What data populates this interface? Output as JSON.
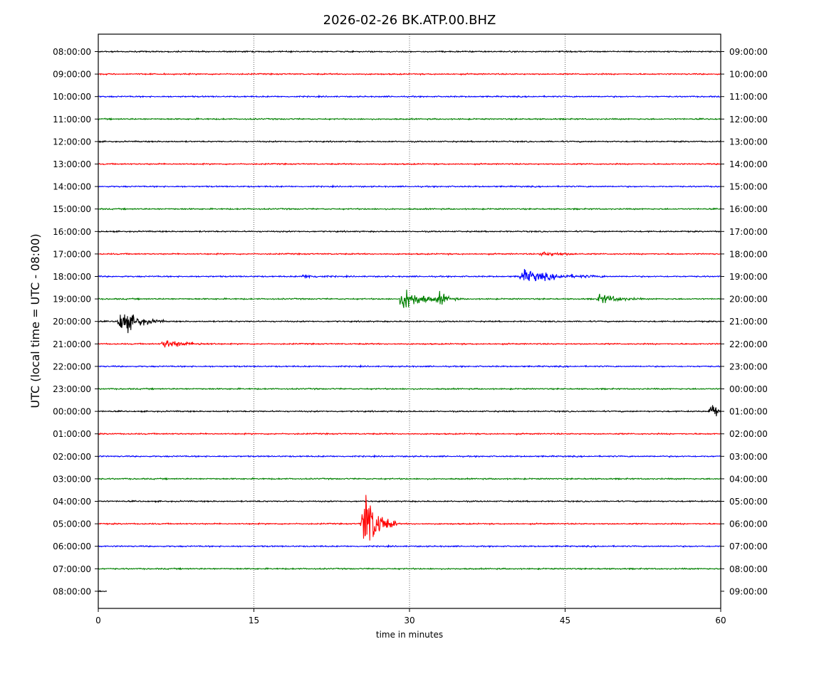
{
  "chart_data": {
    "type": "line",
    "title": "2026-02-26 BK.ATP.00.BHZ",
    "xlabel": "time in minutes",
    "ylabel": "UTC (local time = UTC - 08:00)",
    "xlim": [
      0,
      60
    ],
    "x_ticks": [
      0,
      15,
      30,
      45,
      60
    ],
    "grid": "vertical dotted lines at 15, 30, 45",
    "colors": [
      "#000000",
      "#ff0000",
      "#0000ff",
      "#008000"
    ],
    "left_labels": [
      "08:00:00",
      "09:00:00",
      "10:00:00",
      "11:00:00",
      "12:00:00",
      "13:00:00",
      "14:00:00",
      "15:00:00",
      "16:00:00",
      "17:00:00",
      "18:00:00",
      "19:00:00",
      "20:00:00",
      "21:00:00",
      "22:00:00",
      "23:00:00",
      "00:00:00",
      "01:00:00",
      "02:00:00",
      "03:00:00",
      "04:00:00",
      "05:00:00",
      "06:00:00",
      "07:00:00",
      "08:00:00"
    ],
    "right_labels": [
      "09:00:00",
      "10:00:00",
      "11:00:00",
      "12:00:00",
      "13:00:00",
      "14:00:00",
      "15:00:00",
      "16:00:00",
      "17:00:00",
      "18:00:00",
      "19:00:00",
      "20:00:00",
      "21:00:00",
      "22:00:00",
      "23:00:00",
      "00:00:00",
      "01:00:00",
      "02:00:00",
      "03:00:00",
      "04:00:00",
      "05:00:00",
      "06:00:00",
      "07:00:00",
      "08:00:00",
      "09:00:00"
    ],
    "last_trace_end_minute": 0.8,
    "events": [
      {
        "trace": 9,
        "minute": 43,
        "amplitude": 0.35,
        "duration": 4
      },
      {
        "trace": 10,
        "minute": 20,
        "amplitude": 0.25,
        "duration": 3
      },
      {
        "trace": 10,
        "minute": 41,
        "amplitude": 0.9,
        "duration": 8
      },
      {
        "trace": 11,
        "minute": 29.5,
        "amplitude": 1.8,
        "duration": 4
      },
      {
        "trace": 11,
        "minute": 33,
        "amplitude": 0.8,
        "duration": 2
      },
      {
        "trace": 11,
        "minute": 48.5,
        "amplitude": 0.7,
        "duration": 4
      },
      {
        "trace": 12,
        "minute": 2.3,
        "amplitude": 1.8,
        "duration": 4
      },
      {
        "trace": 13,
        "minute": 6.5,
        "amplitude": 0.6,
        "duration": 5
      },
      {
        "trace": 16,
        "minute": 59.3,
        "amplitude": 1.2,
        "duration": 1
      },
      {
        "trace": 21,
        "minute": 25.8,
        "amplitude": 5.0,
        "duration": 3
      }
    ]
  }
}
